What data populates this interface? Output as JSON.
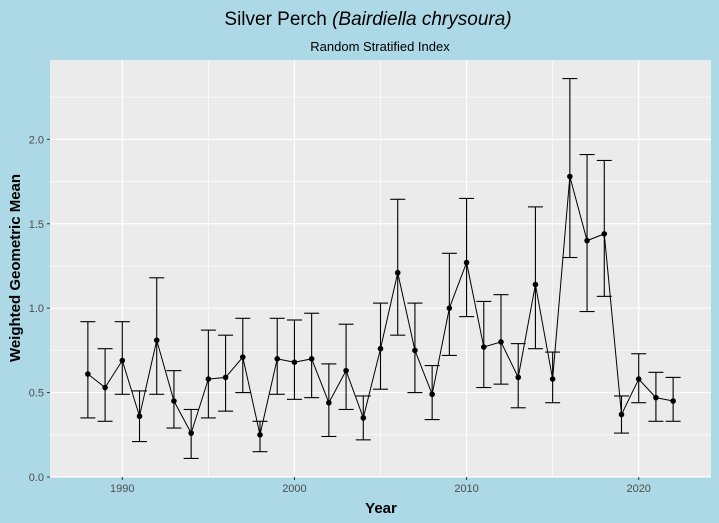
{
  "chart_data": {
    "type": "line",
    "title": "Silver Perch",
    "title_italic": "(Bairdiella chrysoura)",
    "subtitle": "Random Stratified Index",
    "xlabel": "Year",
    "ylabel": "Weighted Geometric Mean",
    "xlim": [
      1985.8,
      2024.2
    ],
    "ylim": [
      0,
      2.47
    ],
    "xticks": [
      1990,
      2000,
      2010,
      2020
    ],
    "yticks": [
      0.0,
      0.5,
      1.0,
      1.5,
      2.0
    ],
    "grid": true,
    "colors": {
      "background": "#add8e6",
      "panel": "#ebebeb",
      "grid": "#ffffff",
      "series": "#000000"
    },
    "x": [
      1988,
      1989,
      1990,
      1991,
      1992,
      1993,
      1994,
      1995,
      1996,
      1997,
      1998,
      1999,
      2000,
      2001,
      2002,
      2003,
      2004,
      2005,
      2006,
      2007,
      2008,
      2009,
      2010,
      2011,
      2012,
      2013,
      2014,
      2015,
      2016,
      2017,
      2018,
      2019,
      2020,
      2021,
      2022
    ],
    "y": [
      0.61,
      0.53,
      0.69,
      0.36,
      0.81,
      0.45,
      0.26,
      0.58,
      0.59,
      0.71,
      0.25,
      0.7,
      0.68,
      0.7,
      0.44,
      0.63,
      0.35,
      0.76,
      1.21,
      0.75,
      0.49,
      1.0,
      1.27,
      0.77,
      0.8,
      0.59,
      1.14,
      0.58,
      1.78,
      1.4,
      1.44,
      0.37,
      0.58,
      0.47,
      0.45
    ],
    "upper": [
      0.92,
      0.76,
      0.92,
      0.51,
      1.18,
      0.63,
      0.4,
      0.87,
      0.84,
      0.94,
      0.33,
      0.94,
      0.93,
      0.97,
      0.67,
      0.905,
      0.48,
      1.03,
      1.645,
      1.03,
      0.66,
      1.325,
      1.65,
      1.04,
      1.08,
      0.79,
      1.6,
      0.74,
      2.36,
      1.91,
      1.875,
      0.48,
      0.73,
      0.62,
      0.59
    ],
    "lower": [
      0.35,
      0.33,
      0.49,
      0.21,
      0.49,
      0.29,
      0.11,
      0.35,
      0.39,
      0.5,
      0.15,
      0.49,
      0.46,
      0.47,
      0.24,
      0.4,
      0.22,
      0.52,
      0.84,
      0.5,
      0.34,
      0.72,
      0.95,
      0.53,
      0.55,
      0.41,
      0.76,
      0.44,
      1.3,
      0.98,
      1.07,
      0.26,
      0.44,
      0.33,
      0.33
    ]
  }
}
